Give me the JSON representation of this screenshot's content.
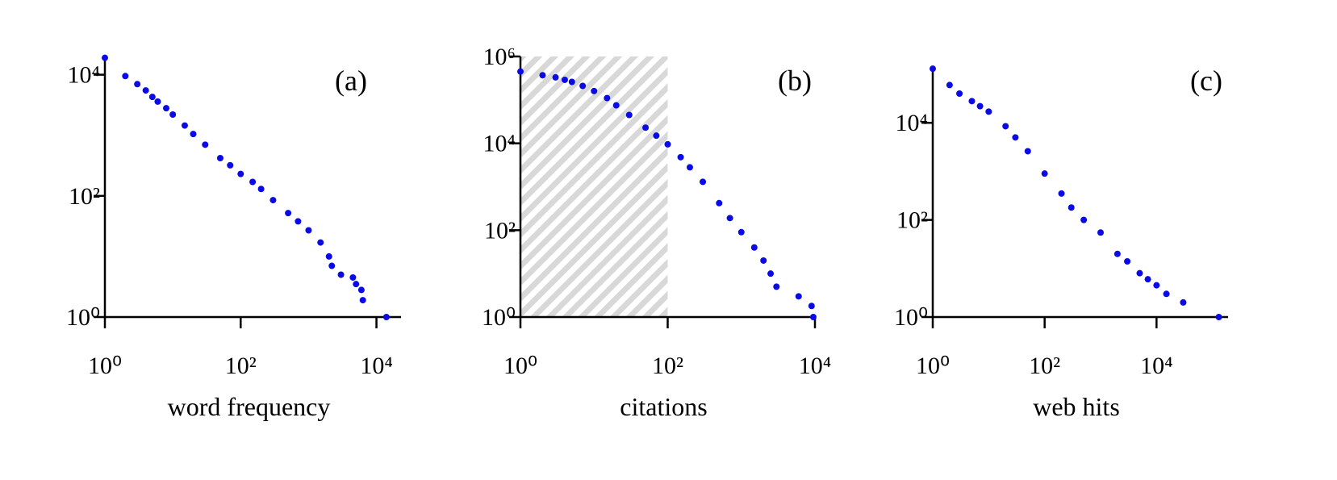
{
  "chart_data": [
    {
      "type": "scatter",
      "annotation": "(a)",
      "x_label": "word frequency",
      "color": "#0a0ae6",
      "log_x": true,
      "log_y": true,
      "x": [
        1,
        2,
        3,
        4,
        5,
        6,
        8,
        10,
        15,
        20,
        30,
        50,
        70,
        100,
        150,
        200,
        300,
        500,
        700,
        1000,
        1500,
        2000,
        2200,
        3000,
        4500,
        5000,
        6000,
        6300,
        14000
      ],
      "y": [
        19000,
        9500,
        7000,
        5500,
        4300,
        3600,
        2800,
        2200,
        1450,
        1050,
        700,
        420,
        320,
        230,
        170,
        130,
        85,
        52,
        38,
        27,
        17,
        10,
        7,
        5,
        4.5,
        3.5,
        2.8,
        1.9,
        1
      ],
      "xlim": [
        1,
        23000
      ],
      "ylim": [
        1,
        20000
      ],
      "xticks": [
        {
          "value": 1,
          "label": "10⁰"
        },
        {
          "value": 100,
          "label": "10²"
        },
        {
          "value": 10000,
          "label": "10⁴"
        }
      ],
      "yticks": [
        {
          "value": 1,
          "label": "10⁰"
        },
        {
          "value": 100,
          "label": "10²"
        },
        {
          "value": 10000,
          "label": "10⁴"
        }
      ]
    },
    {
      "type": "scatter",
      "annotation": "(b)",
      "x_label": "citations",
      "color": "#0a0ae6",
      "log_x": true,
      "log_y": true,
      "highlight_xlim": [
        1,
        100
      ],
      "x": [
        1,
        2,
        3,
        4,
        5,
        7,
        10,
        15,
        20,
        30,
        50,
        70,
        100,
        150,
        200,
        300,
        500,
        700,
        1000,
        1500,
        2000,
        2500,
        3000,
        6000,
        9000,
        9500
      ],
      "y": [
        450000,
        370000,
        330000,
        290000,
        260000,
        210000,
        160000,
        110000,
        75000,
        45000,
        23000,
        15000,
        9500,
        4800,
        2800,
        1300,
        420,
        190,
        90,
        40,
        20,
        10,
        5,
        3,
        1.8,
        1
      ],
      "xlim": [
        1,
        10000
      ],
      "ylim": [
        1,
        1000000
      ],
      "xticks": [
        {
          "value": 1,
          "label": "10⁰"
        },
        {
          "value": 100,
          "label": "10²"
        },
        {
          "value": 10000,
          "label": "10⁴"
        }
      ],
      "yticks": [
        {
          "value": 1,
          "label": "10⁰"
        },
        {
          "value": 100,
          "label": "10²"
        },
        {
          "value": 10000,
          "label": "10⁴"
        },
        {
          "value": 1000000,
          "label": "10⁶"
        }
      ]
    },
    {
      "type": "scatter",
      "annotation": "(c)",
      "x_label": "web hits",
      "color": "#0a0ae6",
      "log_x": true,
      "log_y": true,
      "x": [
        1,
        2,
        3,
        5,
        7,
        10,
        20,
        30,
        50,
        100,
        200,
        300,
        500,
        1000,
        2000,
        3000,
        5000,
        7000,
        10000,
        15000,
        30000,
        130000
      ],
      "y": [
        130000,
        60000,
        40000,
        28000,
        22000,
        17000,
        8500,
        5000,
        2600,
        900,
        350,
        180,
        100,
        55,
        20,
        14,
        8,
        6,
        4.5,
        3,
        2,
        1
      ],
      "xlim": [
        1,
        190000
      ],
      "ylim": [
        1,
        126000
      ],
      "xticks": [
        {
          "value": 1,
          "label": "10⁰"
        },
        {
          "value": 100,
          "label": "10²"
        },
        {
          "value": 10000,
          "label": "10⁴"
        }
      ],
      "yticks": [
        {
          "value": 1,
          "label": "10⁰"
        },
        {
          "value": 100,
          "label": "10²"
        },
        {
          "value": 10000,
          "label": "10⁴"
        }
      ]
    }
  ]
}
